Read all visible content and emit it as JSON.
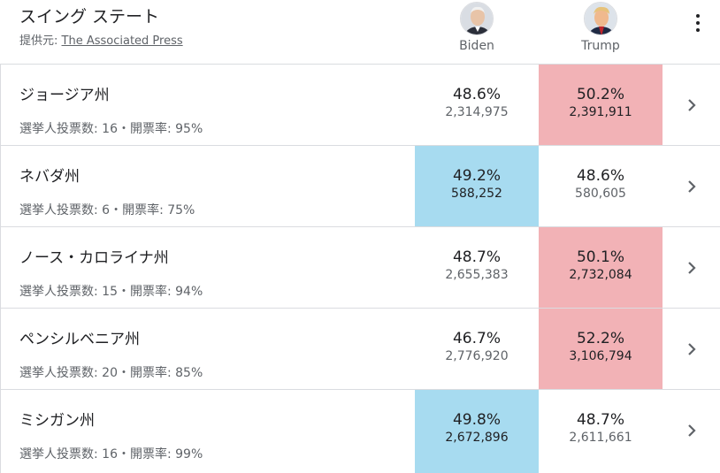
{
  "header": {
    "title": "スイング ステート",
    "source_prefix": "提供元: ",
    "source_link": "The Associated Press"
  },
  "candidates": [
    {
      "name": "Biden",
      "color": "#a7dbf0"
    },
    {
      "name": "Trump",
      "color": "#f2b2b6"
    }
  ],
  "rows": [
    {
      "state": "ジョージア州",
      "meta": "選挙人投票数: 16・開票率: 95%",
      "biden_pct": "48.6%",
      "biden_votes": "2,314,975",
      "trump_pct": "50.2%",
      "trump_votes": "2,391,911",
      "winner": "trump"
    },
    {
      "state": "ネバダ州",
      "meta": "選挙人投票数: 6・開票率: 75%",
      "biden_pct": "49.2%",
      "biden_votes": "588,252",
      "trump_pct": "48.6%",
      "trump_votes": "580,605",
      "winner": "biden"
    },
    {
      "state": "ノース・カロライナ州",
      "meta": "選挙人投票数: 15・開票率: 94%",
      "biden_pct": "48.7%",
      "biden_votes": "2,655,383",
      "trump_pct": "50.1%",
      "trump_votes": "2,732,084",
      "winner": "trump"
    },
    {
      "state": "ペンシルベニア州",
      "meta": "選挙人投票数: 20・開票率: 85%",
      "biden_pct": "46.7%",
      "biden_votes": "2,776,920",
      "trump_pct": "52.2%",
      "trump_votes": "3,106,794",
      "winner": "trump"
    },
    {
      "state": "ミシガン州",
      "meta": "選挙人投票数: 16・開票率: 99%",
      "biden_pct": "49.8%",
      "biden_votes": "2,672,896",
      "trump_pct": "48.7%",
      "trump_votes": "2,611,661",
      "winner": "biden"
    }
  ]
}
